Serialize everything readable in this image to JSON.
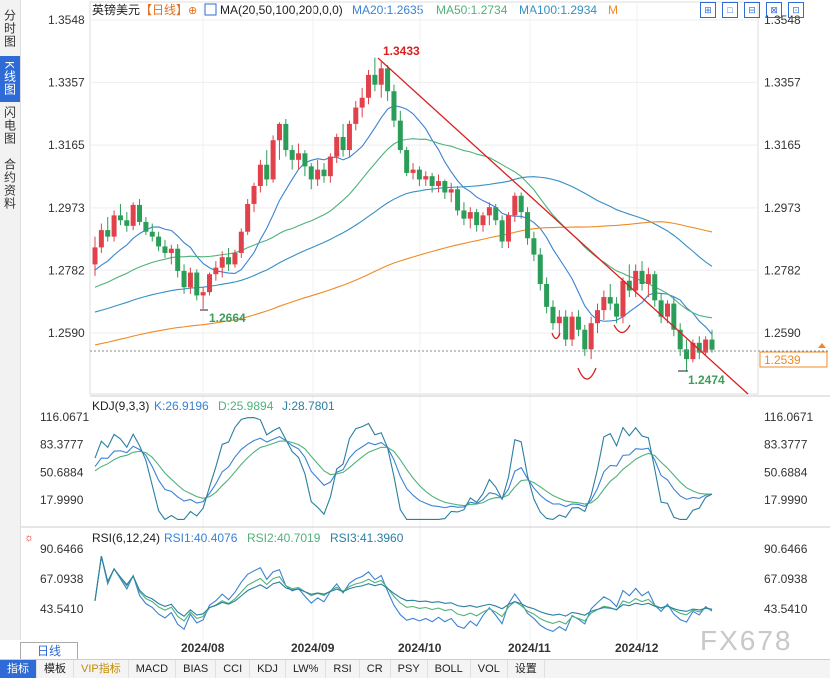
{
  "left_tabs": [
    {
      "label": "分时图",
      "active": false
    },
    {
      "label": "K线图",
      "active": true
    },
    {
      "label": "闪电图",
      "active": false
    },
    {
      "label": "合约资料",
      "active": false
    }
  ],
  "header": {
    "symbol": "英镑美元",
    "period": "【日线】",
    "ma_label": "MA(20,50,100,200,0,0)",
    "ma20": "MA20:1.2635",
    "ma50": "MA50:1.2734",
    "ma100": "MA100:1.2934",
    "m": "M"
  },
  "toolbar_icons": [
    "⊞",
    "□",
    "⊟",
    "⊠",
    "⊡"
  ],
  "kdj": {
    "label": "KDJ(9,3,3)",
    "k": "K:26.9196",
    "d": "D:25.9894",
    "j": "J:28.7801"
  },
  "rsi": {
    "label": "RSI(6,12,24)",
    "r1": "RSI1:40.4076",
    "r2": "RSI2:40.7019",
    "r3": "RSI3:41.3960"
  },
  "period_tab": "日线",
  "bottom_tabs": [
    "指标",
    "模板",
    "VIP指标",
    "MACD",
    "BIAS",
    "CCI",
    "KDJ",
    "LW%",
    "RSI",
    "CR",
    "PSY",
    "BOLL",
    "VOL",
    "设置"
  ],
  "watermark": "FX678",
  "colors": {
    "up": "#e0414b",
    "down": "#2a9d58",
    "ma20": "#3a82d4",
    "ma50": "#4fb27a",
    "ma100": "#3590c4",
    "ma200": "#f08a24",
    "trend": "#d92020",
    "k": "#3a82d4",
    "d": "#4fb27a",
    "j": "#2b7fa0"
  },
  "chart_data": {
    "type": "candlestick",
    "price_ticks": [
      "1.3548",
      "1.3357",
      "1.3165",
      "1.2973",
      "1.2782",
      "1.2590"
    ],
    "last_price": "1.2539",
    "high_label": "1.3433",
    "low_labels": [
      "1.2664",
      "1.2474"
    ],
    "x_labels": [
      "2024/08",
      "2024/09",
      "2024/10",
      "2024/11",
      "2024/12"
    ],
    "kdj_ticks": [
      "116.0671",
      "83.3777",
      "50.6884",
      "17.9990"
    ],
    "rsi_ticks": [
      "90.6466",
      "67.0938",
      "43.5410"
    ],
    "candles_ohlc": [
      [
        1.28,
        1.2885,
        1.2765,
        1.2852
      ],
      [
        1.2852,
        1.2925,
        1.2835,
        1.2905
      ],
      [
        1.2905,
        1.2945,
        1.287,
        1.2885
      ],
      [
        1.2885,
        1.2965,
        1.287,
        1.295
      ],
      [
        1.295,
        1.2985,
        1.292,
        1.2935
      ],
      [
        1.2935,
        1.296,
        1.29,
        1.2918
      ],
      [
        1.2918,
        1.299,
        1.2905,
        1.2982
      ],
      [
        1.2982,
        1.3,
        1.292,
        1.293
      ],
      [
        1.293,
        1.2945,
        1.289,
        1.29
      ],
      [
        1.29,
        1.2925,
        1.287,
        1.2885
      ],
      [
        1.2885,
        1.29,
        1.284,
        1.2855
      ],
      [
        1.2855,
        1.2875,
        1.282,
        1.2835
      ],
      [
        1.2835,
        1.286,
        1.28,
        1.2848
      ],
      [
        1.2848,
        1.2862,
        1.276,
        1.278
      ],
      [
        1.278,
        1.28,
        1.271,
        1.273
      ],
      [
        1.273,
        1.279,
        1.271,
        1.2775
      ],
      [
        1.2775,
        1.2785,
        1.269,
        1.2705
      ],
      [
        1.2705,
        1.273,
        1.2664,
        1.2715
      ],
      [
        1.2715,
        1.2775,
        1.2705,
        1.277
      ],
      [
        1.277,
        1.281,
        1.275,
        1.279
      ],
      [
        1.279,
        1.284,
        1.276,
        1.2822
      ],
      [
        1.2822,
        1.285,
        1.278,
        1.28
      ],
      [
        1.28,
        1.2845,
        1.279,
        1.2835
      ],
      [
        1.2835,
        1.291,
        1.282,
        1.29
      ],
      [
        1.29,
        1.3,
        1.289,
        1.2985
      ],
      [
        1.2985,
        1.305,
        1.296,
        1.304
      ],
      [
        1.304,
        1.312,
        1.302,
        1.3105
      ],
      [
        1.3105,
        1.315,
        1.304,
        1.306
      ],
      [
        1.306,
        1.3195,
        1.305,
        1.318
      ],
      [
        1.318,
        1.3235,
        1.312,
        1.323
      ],
      [
        1.323,
        1.3245,
        1.313,
        1.315
      ],
      [
        1.315,
        1.3165,
        1.309,
        1.312
      ],
      [
        1.312,
        1.317,
        1.309,
        1.314
      ],
      [
        1.314,
        1.315,
        1.307,
        1.31
      ],
      [
        1.31,
        1.311,
        1.303,
        1.306
      ],
      [
        1.306,
        1.312,
        1.304,
        1.309
      ],
      [
        1.309,
        1.311,
        1.305,
        1.307
      ],
      [
        1.307,
        1.314,
        1.305,
        1.313
      ],
      [
        1.313,
        1.32,
        1.311,
        1.319
      ],
      [
        1.319,
        1.323,
        1.313,
        1.315
      ],
      [
        1.315,
        1.324,
        1.313,
        1.323
      ],
      [
        1.323,
        1.33,
        1.321,
        1.328
      ],
      [
        1.328,
        1.334,
        1.325,
        1.331
      ],
      [
        1.331,
        1.3395,
        1.329,
        1.338
      ],
      [
        1.338,
        1.3433,
        1.333,
        1.335
      ],
      [
        1.335,
        1.342,
        1.331,
        1.34
      ],
      [
        1.34,
        1.341,
        1.33,
        1.333
      ],
      [
        1.333,
        1.335,
        1.322,
        1.324
      ],
      [
        1.324,
        1.327,
        1.314,
        1.315
      ],
      [
        1.315,
        1.316,
        1.307,
        1.308
      ],
      [
        1.308,
        1.311,
        1.306,
        1.309
      ],
      [
        1.309,
        1.31,
        1.304,
        1.306
      ],
      [
        1.306,
        1.3085,
        1.304,
        1.307
      ],
      [
        1.307,
        1.308,
        1.302,
        1.304
      ],
      [
        1.304,
        1.3075,
        1.302,
        1.3055
      ],
      [
        1.3055,
        1.306,
        1.3,
        1.302
      ],
      [
        1.302,
        1.305,
        1.299,
        1.303
      ],
      [
        1.303,
        1.304,
        1.295,
        1.2965
      ],
      [
        1.2965,
        1.299,
        1.292,
        1.294
      ],
      [
        1.294,
        1.2975,
        1.291,
        1.296
      ],
      [
        1.296,
        1.297,
        1.29,
        1.292
      ],
      [
        1.292,
        1.296,
        1.29,
        1.295
      ],
      [
        1.295,
        1.299,
        1.292,
        1.2975
      ],
      [
        1.2975,
        1.2985,
        1.292,
        1.2935
      ],
      [
        1.2935,
        1.295,
        1.285,
        1.287
      ],
      [
        1.287,
        1.296,
        1.285,
        1.295
      ],
      [
        1.295,
        1.302,
        1.293,
        1.301
      ],
      [
        1.301,
        1.302,
        1.294,
        1.296
      ],
      [
        1.296,
        1.2975,
        1.286,
        1.288
      ],
      [
        1.288,
        1.29,
        1.281,
        1.283
      ],
      [
        1.283,
        1.285,
        1.272,
        1.274
      ],
      [
        1.274,
        1.276,
        1.265,
        1.267
      ],
      [
        1.267,
        1.269,
        1.26,
        1.262
      ],
      [
        1.262,
        1.266,
        1.258,
        1.264
      ],
      [
        1.264,
        1.266,
        1.255,
        1.257
      ],
      [
        1.257,
        1.2655,
        1.255,
        1.264
      ],
      [
        1.264,
        1.266,
        1.258,
        1.26
      ],
      [
        1.26,
        1.2615,
        1.252,
        1.254
      ],
      [
        1.254,
        1.264,
        1.251,
        1.262
      ],
      [
        1.262,
        1.268,
        1.259,
        1.266
      ],
      [
        1.266,
        1.272,
        1.263,
        1.27
      ],
      [
        1.27,
        1.274,
        1.266,
        1.268
      ],
      [
        1.268,
        1.27,
        1.262,
        1.264
      ],
      [
        1.264,
        1.276,
        1.262,
        1.275
      ],
      [
        1.275,
        1.28,
        1.27,
        1.272
      ],
      [
        1.272,
        1.28,
        1.27,
        1.278
      ],
      [
        1.278,
        1.281,
        1.272,
        1.274
      ],
      [
        1.274,
        1.279,
        1.27,
        1.277
      ],
      [
        1.277,
        1.278,
        1.267,
        1.269
      ],
      [
        1.269,
        1.271,
        1.262,
        1.264
      ],
      [
        1.264,
        1.269,
        1.262,
        1.268
      ],
      [
        1.268,
        1.27,
        1.258,
        1.26
      ],
      [
        1.26,
        1.262,
        1.252,
        1.254
      ],
      [
        1.254,
        1.257,
        1.2474,
        1.251
      ],
      [
        1.251,
        1.257,
        1.25,
        1.256
      ],
      [
        1.256,
        1.258,
        1.251,
        1.253
      ],
      [
        1.253,
        1.258,
        1.252,
        1.257
      ],
      [
        1.257,
        1.26,
        1.253,
        1.2539
      ]
    ]
  }
}
